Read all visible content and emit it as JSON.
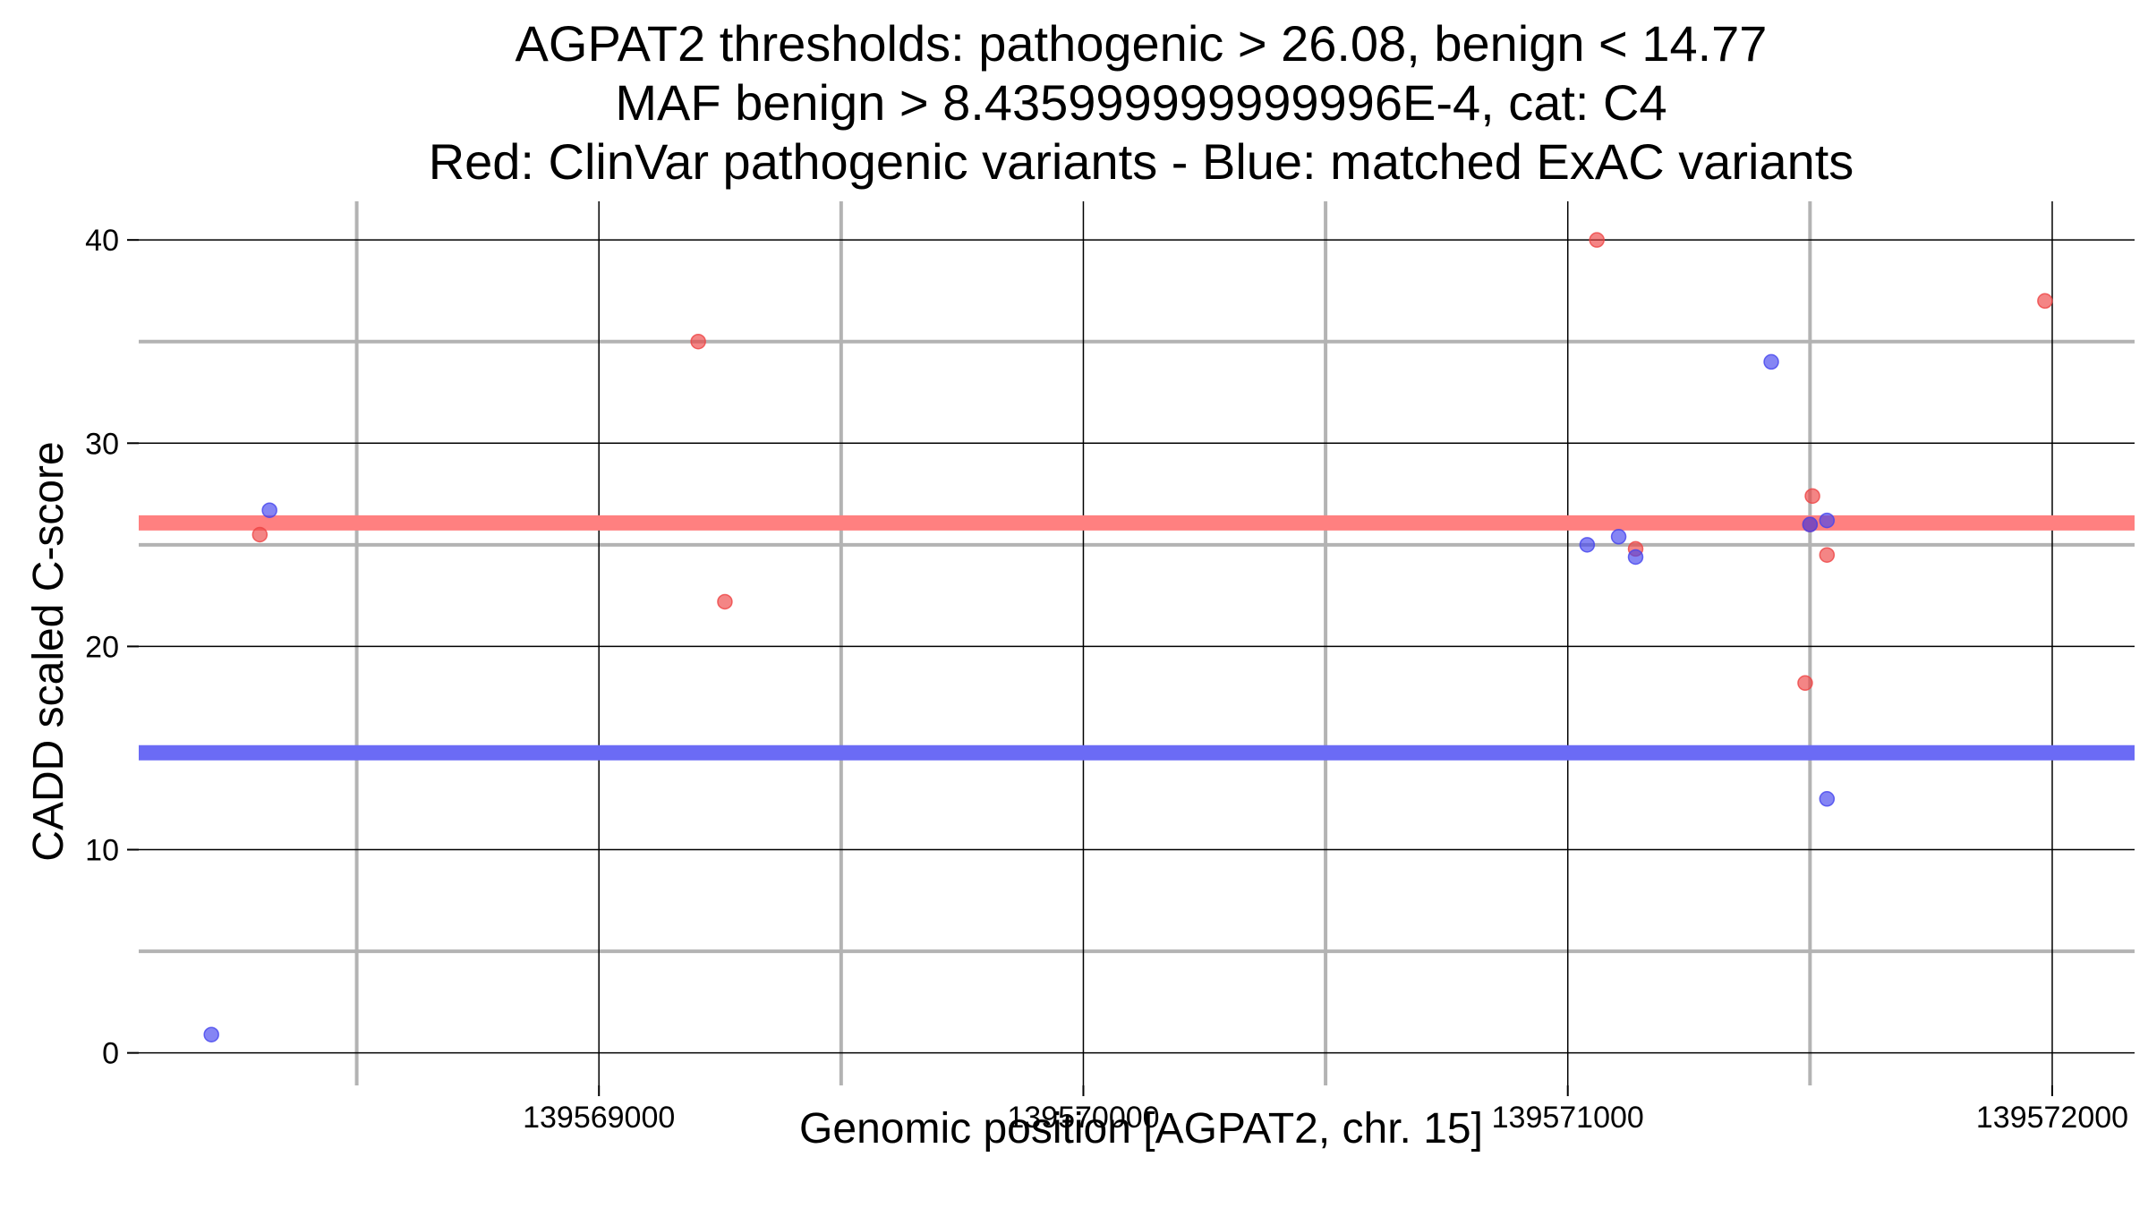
{
  "chart_data": {
    "type": "scatter",
    "title_lines": [
      "AGPAT2 thresholds: pathogenic > 26.08, benign < 14.77",
      "MAF benign > 8.435999999999996E-4, cat: C4",
      "Red: ClinVar pathogenic variants - Blue: matched ExAC variants"
    ],
    "xlabel": "Genomic position [AGPAT2, chr. 15]",
    "ylabel": "CADD scaled C-score",
    "xlim": [
      139568050,
      139572170
    ],
    "ylim": [
      -1.6,
      41.9
    ],
    "x_ticks": [
      139569000,
      139570000,
      139571000,
      139572000
    ],
    "x_tick_labels": [
      "139569000",
      "139570000",
      "139571000",
      "139572000"
    ],
    "x_minor_gridlines": [
      139568500,
      139569500,
      139570500,
      139571500
    ],
    "y_ticks": [
      0,
      10,
      20,
      30,
      40
    ],
    "y_tick_labels": [
      "0",
      "10",
      "20",
      "30",
      "40"
    ],
    "y_minor_gridlines": [
      5,
      15,
      25,
      35
    ],
    "grid": true,
    "thresholds": [
      {
        "name": "pathogenic",
        "value": 26.08,
        "color": "#FF8080"
      },
      {
        "name": "benign",
        "value": 14.77,
        "color": "#6B6BF5"
      }
    ],
    "series": [
      {
        "name": "ClinVar pathogenic",
        "color": "#EE4444",
        "points": [
          {
            "x": 139568300,
            "y": 25.5
          },
          {
            "x": 139569205,
            "y": 35.0
          },
          {
            "x": 139569260,
            "y": 22.2
          },
          {
            "x": 139571060,
            "y": 40.0
          },
          {
            "x": 139571140,
            "y": 24.8
          },
          {
            "x": 139571490,
            "y": 18.2
          },
          {
            "x": 139571505,
            "y": 27.4
          },
          {
            "x": 139571500,
            "y": 26.0
          },
          {
            "x": 139571535,
            "y": 24.5
          },
          {
            "x": 139571985,
            "y": 37.0
          }
        ]
      },
      {
        "name": "matched ExAC",
        "color": "#4444EE",
        "points": [
          {
            "x": 139568200,
            "y": 0.9
          },
          {
            "x": 139568320,
            "y": 26.7
          },
          {
            "x": 139571040,
            "y": 25.0
          },
          {
            "x": 139571105,
            "y": 25.4
          },
          {
            "x": 139571140,
            "y": 24.4
          },
          {
            "x": 139571420,
            "y": 34.0
          },
          {
            "x": 139571500,
            "y": 26.0
          },
          {
            "x": 139571535,
            "y": 26.2
          },
          {
            "x": 139571535,
            "y": 12.5
          }
        ]
      }
    ]
  }
}
